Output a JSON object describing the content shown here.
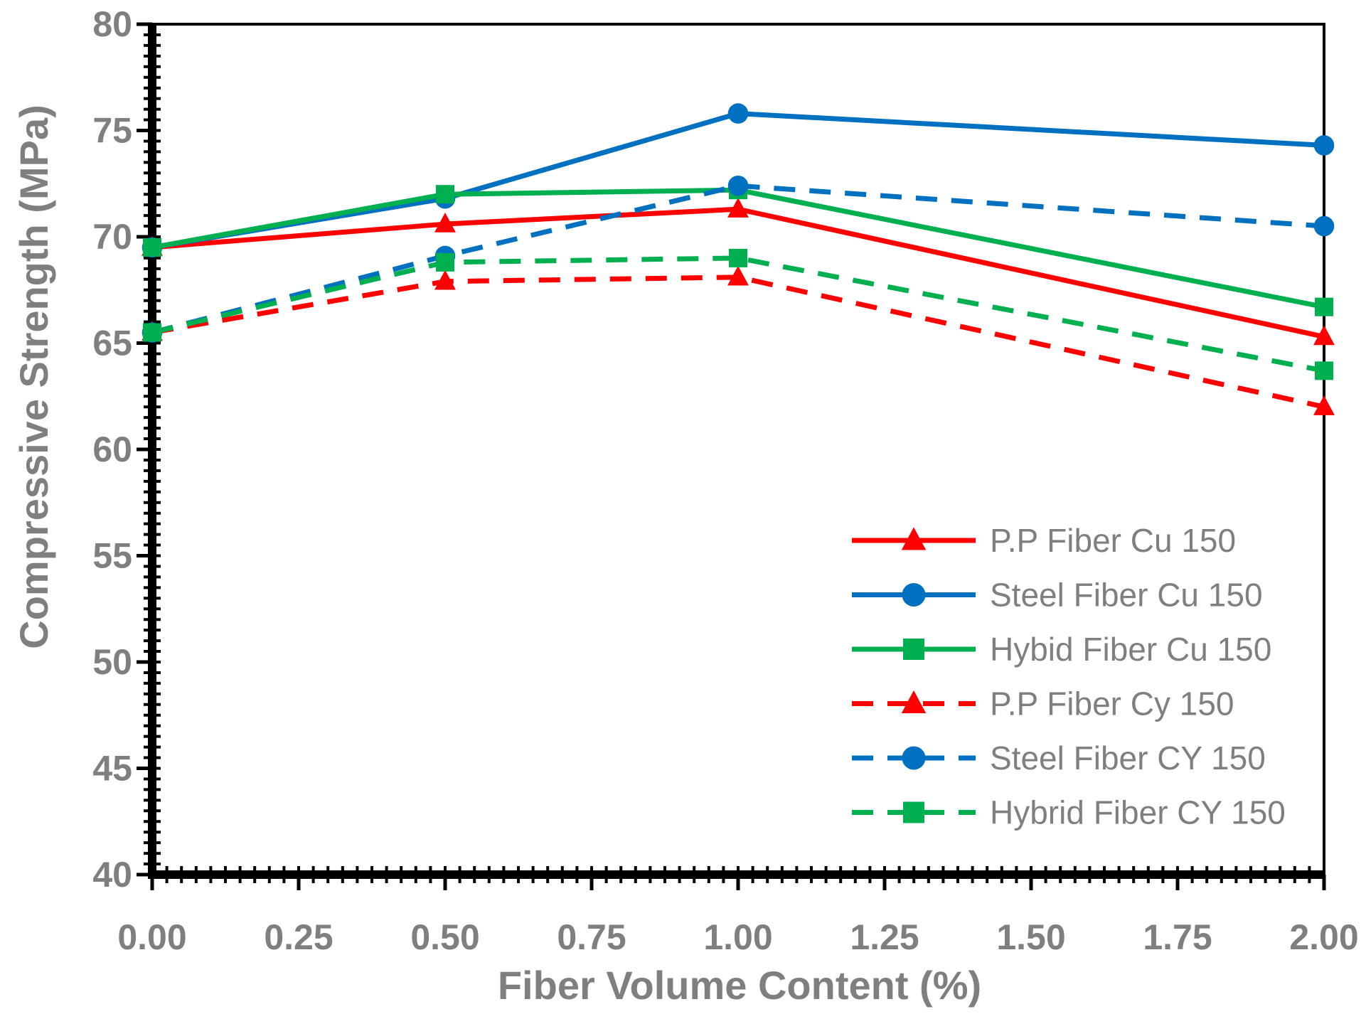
{
  "chart_data": {
    "type": "line",
    "xlabel": "Fiber Volume Content (%)",
    "ylabel": "Compressive Strength (MPa)",
    "xlim": [
      0,
      2
    ],
    "ylim": [
      40,
      80
    ],
    "xticks": [
      "0.00",
      "0.25",
      "0.50",
      "0.75",
      "1.00",
      "1.25",
      "1.50",
      "1.75",
      "2.00"
    ],
    "yticks": [
      "40",
      "45",
      "50",
      "55",
      "60",
      "65",
      "70",
      "75",
      "80"
    ],
    "x": [
      0,
      0.5,
      1.0,
      2.0
    ],
    "legend_position": "lower-right",
    "series": [
      {
        "name": "P.P Fiber Cu 150",
        "color": "#ff0000",
        "dash": "solid",
        "marker": "triangle",
        "values": [
          69.5,
          70.6,
          71.3,
          65.3
        ]
      },
      {
        "name": "Steel Fiber Cu 150",
        "color": "#0070c0",
        "dash": "solid",
        "marker": "circle",
        "values": [
          69.5,
          71.8,
          75.8,
          74.3
        ]
      },
      {
        "name": "Hybid Fiber Cu 150",
        "color": "#00b050",
        "dash": "solid",
        "marker": "square",
        "values": [
          69.5,
          72.0,
          72.2,
          66.7
        ]
      },
      {
        "name": "P.P Fiber Cy 150",
        "color": "#ff0000",
        "dash": "dashed",
        "marker": "triangle",
        "values": [
          65.5,
          67.9,
          68.1,
          62.0
        ]
      },
      {
        "name": "Steel Fiber CY 150",
        "color": "#0070c0",
        "dash": "dashed",
        "marker": "circle",
        "values": [
          65.5,
          69.1,
          72.4,
          70.5
        ]
      },
      {
        "name": "Hybrid Fiber CY 150",
        "color": "#00b050",
        "dash": "dashed",
        "marker": "square",
        "values": [
          65.5,
          68.8,
          69.0,
          63.7
        ]
      }
    ]
  }
}
